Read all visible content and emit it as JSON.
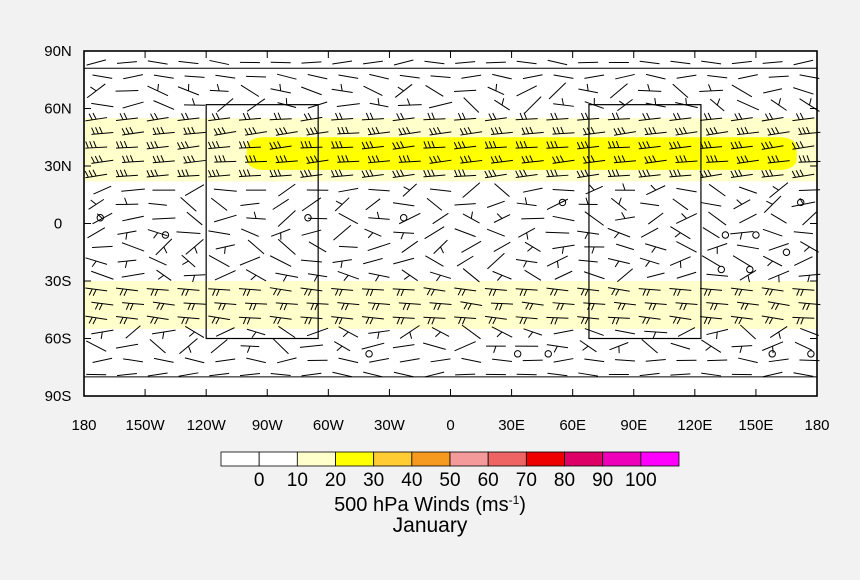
{
  "chart_data": {
    "type": "wind-barb-map",
    "title": "",
    "lon_ticks": [
      "180",
      "150W",
      "120W",
      "90W",
      "60W",
      "30W",
      "0",
      "30E",
      "60E",
      "90E",
      "120E",
      "150E",
      "180"
    ],
    "lat_ticks": [
      "90N",
      "60N",
      "30N",
      "0",
      "30S",
      "60S",
      "90S"
    ],
    "xlim": [
      -180,
      180
    ],
    "ylim": [
      -90,
      90
    ],
    "colorbar": {
      "levels": [
        0,
        10,
        20,
        30,
        40,
        50,
        60,
        70,
        80,
        90,
        100
      ],
      "colors": [
        "#ffffff",
        "#ffffff",
        "#ffffcc",
        "#ffff00",
        "#ffcc33",
        "#f59a1f",
        "#f59a9a",
        "#ee6464",
        "#ee0000",
        "#dd0066",
        "#ee00bb",
        "#ff00ff"
      ],
      "label": "500 hPa Winds (ms",
      "label_exponent": "-1",
      "label_close": ")"
    },
    "shading": [
      {
        "level": "10-20",
        "lon": [
          -180,
          180
        ],
        "lat": [
          22,
          55
        ]
      },
      {
        "level": "20-30",
        "lon": [
          -100,
          170
        ],
        "lat": [
          28,
          45
        ]
      },
      {
        "level": "10-20",
        "lon": [
          -180,
          180
        ],
        "lat": [
          -55,
          -30
        ]
      }
    ],
    "boxes": [
      {
        "lon": [
          -120,
          -65
        ],
        "lat": [
          -60,
          62
        ]
      },
      {
        "lon": [
          68,
          123
        ],
        "lat": [
          -60,
          62
        ]
      }
    ],
    "jet_bands": [
      {
        "lat_min": 22,
        "lat_max": 58,
        "speed": "strong",
        "direction": "westerly"
      },
      {
        "lat_min": -56,
        "lat_max": -28,
        "speed": "strong",
        "direction": "westerly"
      }
    ],
    "calm_points": [
      {
        "lon": -172,
        "lat": 3
      },
      {
        "lon": -140,
        "lat": -6
      },
      {
        "lon": -70,
        "lat": 3
      },
      {
        "lon": -23,
        "lat": 3
      },
      {
        "lon": 55,
        "lat": 11
      },
      {
        "lon": 150,
        "lat": -6
      },
      {
        "lon": 135,
        "lat": -6
      },
      {
        "lon": 172,
        "lat": 11
      },
      {
        "lon": 165,
        "lat": -15
      },
      {
        "lon": 133,
        "lat": -24
      },
      {
        "lon": 147,
        "lat": -24
      },
      {
        "lon": -40,
        "lat": -68
      },
      {
        "lon": 33,
        "lat": -68
      },
      {
        "lon": 48,
        "lat": -68
      },
      {
        "lon": 158,
        "lat": -68
      },
      {
        "lon": 177,
        "lat": -68
      }
    ],
    "caption": "January"
  }
}
